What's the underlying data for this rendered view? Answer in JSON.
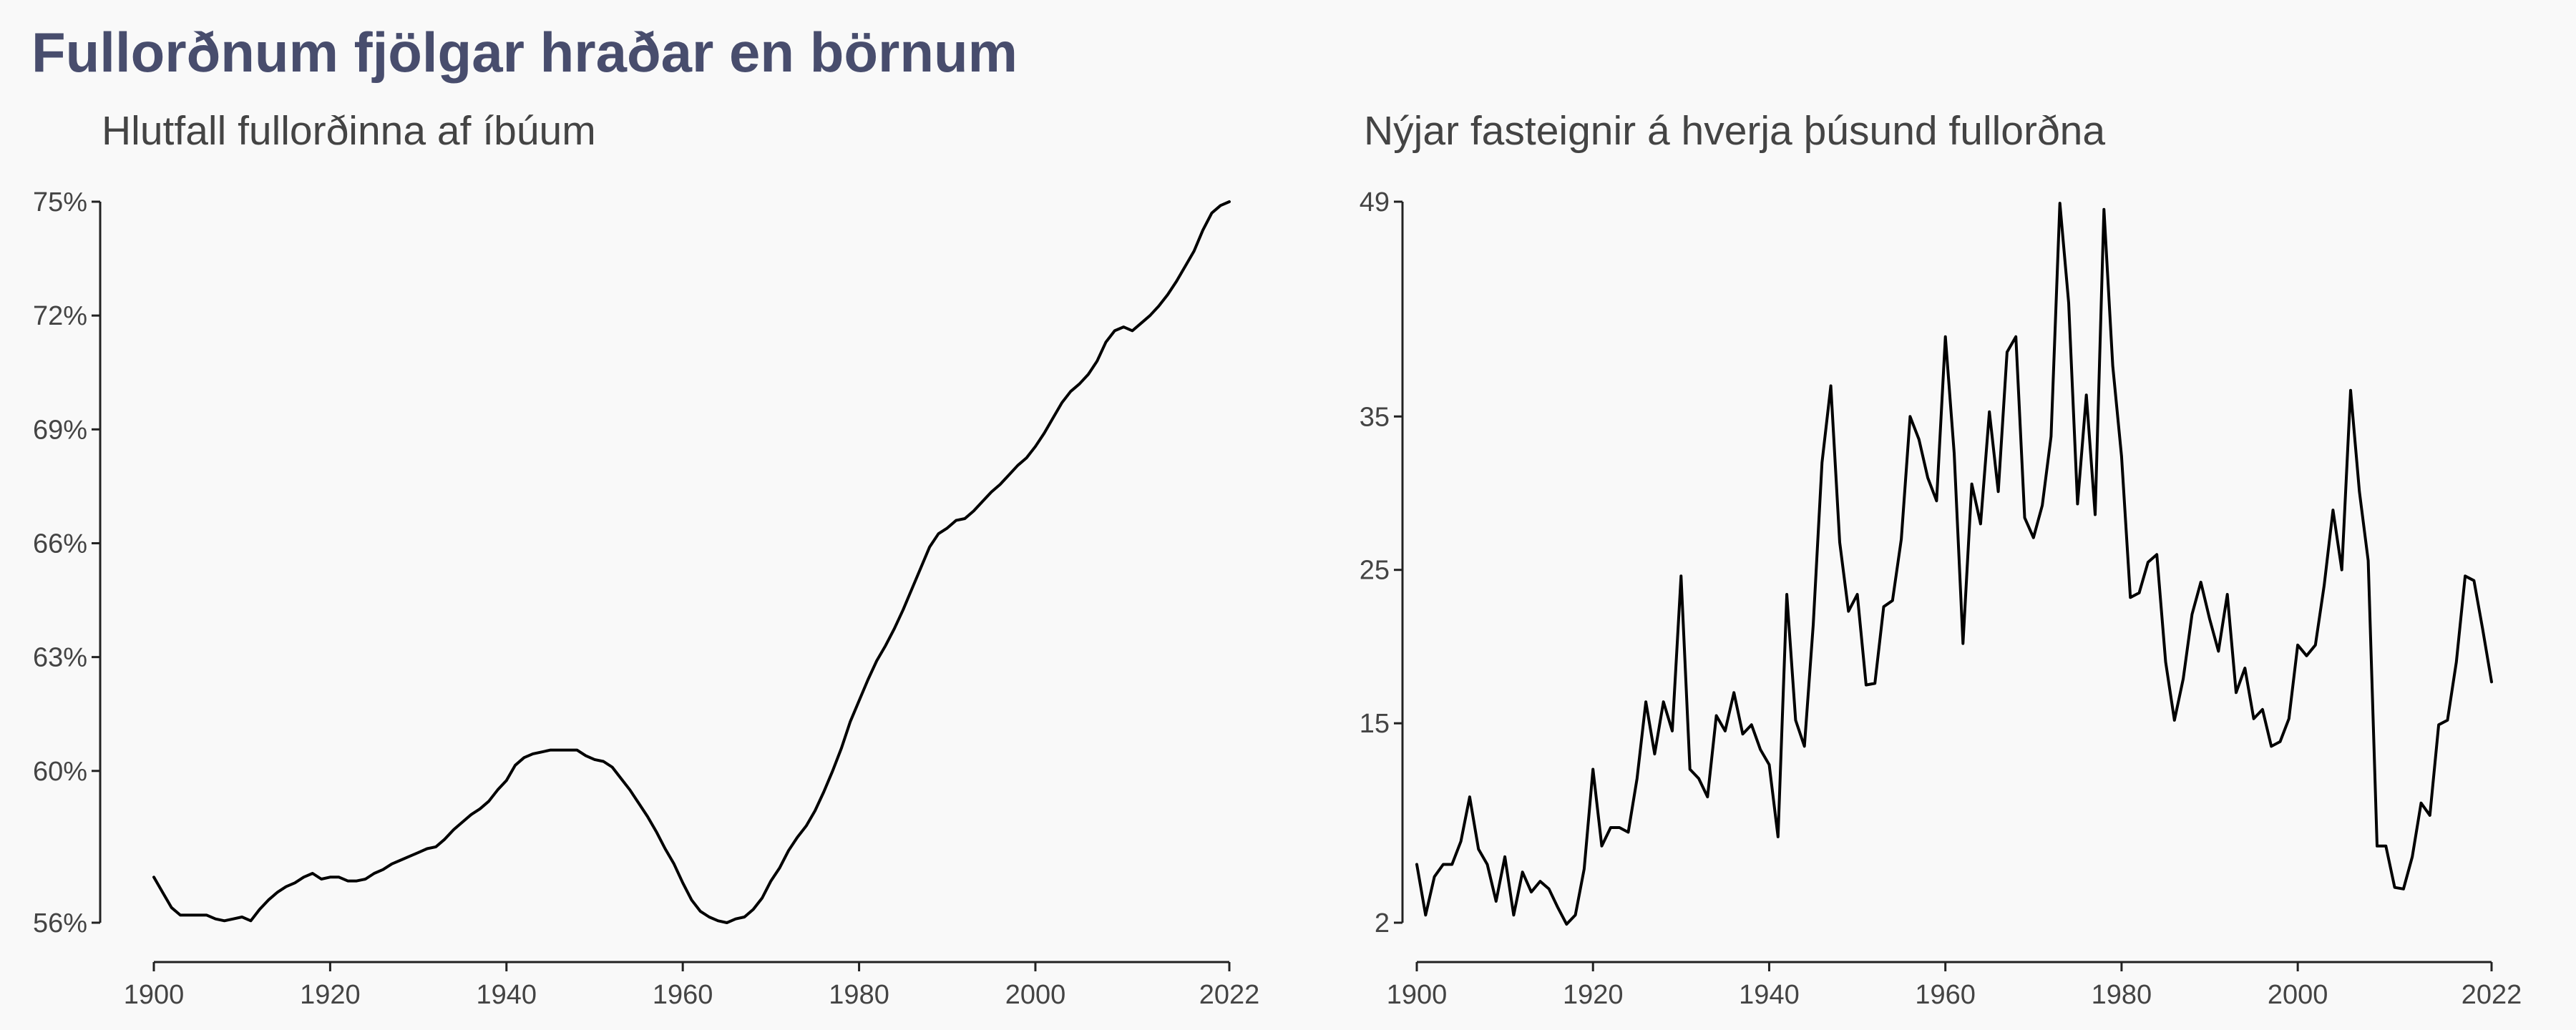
{
  "title": "Fullorðnum fjölgar hraðar en börnum",
  "chart_data": [
    {
      "type": "line",
      "title": "Hlutfall fullorðinna af íbúum",
      "xlabel": "",
      "ylabel": "",
      "xlim": [
        1900,
        2022
      ],
      "ylim": [
        56,
        75
      ],
      "x_ticks": [
        1900,
        1920,
        1940,
        1960,
        1980,
        2000,
        2022
      ],
      "y_ticks": [
        56,
        60,
        63,
        66,
        69,
        72,
        75
      ],
      "y_tick_labels": [
        "56%",
        "60%",
        "63%",
        "66%",
        "69%",
        "72%",
        "75%"
      ],
      "grid": false,
      "legend": "none",
      "line_color": "#000000",
      "series": [
        {
          "x": [
            1900,
            1901,
            1902,
            1903,
            1904,
            1905,
            1906,
            1907,
            1908,
            1909,
            1910,
            1911,
            1912,
            1913,
            1914,
            1915,
            1916,
            1917,
            1918,
            1919,
            1920,
            1921,
            1922,
            1923,
            1924,
            1925,
            1926,
            1927,
            1928,
            1929,
            1930,
            1931,
            1932,
            1933,
            1934,
            1935,
            1936,
            1937,
            1938,
            1939,
            1940,
            1941,
            1942,
            1943,
            1944,
            1945,
            1946,
            1947,
            1948,
            1949,
            1950,
            1951,
            1952,
            1953,
            1954,
            1955,
            1956,
            1957,
            1958,
            1959,
            1960,
            1961,
            1962,
            1963,
            1964,
            1965,
            1966,
            1967,
            1968,
            1969,
            1970,
            1971,
            1972,
            1973,
            1974,
            1975,
            1976,
            1977,
            1978,
            1979,
            1980,
            1981,
            1982,
            1983,
            1984,
            1985,
            1986,
            1987,
            1988,
            1989,
            1990,
            1991,
            1992,
            1993,
            1994,
            1995,
            1996,
            1997,
            1998,
            1999,
            2000,
            2001,
            2002,
            2003,
            2004,
            2005,
            2006,
            2007,
            2008,
            2009,
            2010,
            2011,
            2012,
            2013,
            2014,
            2015,
            2016,
            2017,
            2018,
            2019,
            2020,
            2021,
            2022
          ],
          "values": [
            57.2,
            56.8,
            56.4,
            56.2,
            56.2,
            56.2,
            56.2,
            56.1,
            56.05,
            56.1,
            56.15,
            56.05,
            56.35,
            56.6,
            56.8,
            56.95,
            57.05,
            57.2,
            57.3,
            57.15,
            57.2,
            57.2,
            57.1,
            57.1,
            57.15,
            57.3,
            57.4,
            57.55,
            57.65,
            57.75,
            57.85,
            57.95,
            58.0,
            58.2,
            58.45,
            58.65,
            58.85,
            59.0,
            59.2,
            59.5,
            59.75,
            60.15,
            60.35,
            60.45,
            60.5,
            60.55,
            60.55,
            60.55,
            60.55,
            60.4,
            60.3,
            60.25,
            60.1,
            59.8,
            59.5,
            59.15,
            58.8,
            58.4,
            57.95,
            57.55,
            57.05,
            56.6,
            56.3,
            56.15,
            56.05,
            56.0,
            56.1,
            56.15,
            56.35,
            56.65,
            57.1,
            57.45,
            57.9,
            58.25,
            58.55,
            58.95,
            59.45,
            60.0,
            60.6,
            61.3,
            61.85,
            62.4,
            62.9,
            63.3,
            63.75,
            64.25,
            64.8,
            65.35,
            65.9,
            66.25,
            66.4,
            66.6,
            66.65,
            66.85,
            67.1,
            67.35,
            67.55,
            67.8,
            68.05,
            68.25,
            68.55,
            68.9,
            69.3,
            69.7,
            70.0,
            70.2,
            70.45,
            70.8,
            71.3,
            71.6,
            71.7,
            71.6,
            71.8,
            72.0,
            72.25,
            72.55,
            72.9,
            73.3,
            73.7,
            74.25,
            74.7,
            74.9,
            75.0
          ]
        }
      ]
    },
    {
      "type": "line",
      "title": "Nýjar fasteignir á hverja þúsund fullorðna",
      "xlabel": "",
      "ylabel": "",
      "xlim": [
        1900,
        2022
      ],
      "ylim": [
        2,
        49
      ],
      "x_ticks": [
        1900,
        1920,
        1940,
        1960,
        1980,
        2000,
        2022
      ],
      "y_ticks": [
        2,
        15,
        25,
        35,
        49
      ],
      "y_tick_labels": [
        "2",
        "15",
        "25",
        "35",
        "49"
      ],
      "grid": false,
      "legend": "none",
      "line_color": "#000000",
      "series": [
        {
          "x": [
            1900,
            1901,
            1902,
            1903,
            1904,
            1905,
            1906,
            1907,
            1908,
            1909,
            1910,
            1911,
            1912,
            1913,
            1914,
            1915,
            1916,
            1917,
            1918,
            1919,
            1920,
            1921,
            1922,
            1923,
            1924,
            1925,
            1926,
            1927,
            1928,
            1929,
            1930,
            1931,
            1932,
            1933,
            1934,
            1935,
            1936,
            1937,
            1938,
            1939,
            1940,
            1941,
            1942,
            1943,
            1944,
            1945,
            1946,
            1947,
            1948,
            1949,
            1950,
            1951,
            1952,
            1953,
            1954,
            1955,
            1956,
            1957,
            1958,
            1959,
            1960,
            1961,
            1962,
            1963,
            1964,
            1965,
            1966,
            1967,
            1968,
            1969,
            1970,
            1971,
            1972,
            1973,
            1974,
            1975,
            1976,
            1977,
            1978,
            1979,
            1980,
            1981,
            1982,
            1983,
            1984,
            1985,
            1986,
            1987,
            1988,
            1989,
            1990,
            1991,
            1992,
            1993,
            1994,
            1995,
            1996,
            1997,
            1998,
            1999,
            2000,
            2001,
            2002,
            2003,
            2004,
            2005,
            2006,
            2007,
            2008,
            2009,
            2010,
            2011,
            2012,
            2013,
            2014,
            2015,
            2016,
            2017,
            2018,
            2019,
            2020,
            2021,
            2022
          ],
          "values": [
            5.8,
            2.5,
            5.0,
            5.8,
            5.8,
            7.3,
            10.2,
            6.8,
            5.8,
            3.4,
            6.3,
            2.5,
            5.3,
            4.0,
            4.7,
            4.2,
            3.0,
            1.9,
            2.5,
            5.5,
            12.0,
            7.0,
            8.2,
            8.2,
            7.9,
            11.4,
            16.4,
            13.0,
            16.4,
            14.5,
            24.6,
            12.0,
            11.4,
            10.2,
            15.5,
            14.5,
            17.0,
            14.3,
            14.9,
            13.3,
            12.3,
            7.6,
            23.4,
            15.2,
            13.5,
            21.4,
            32.0,
            37.0,
            26.8,
            22.3,
            23.4,
            17.5,
            17.6,
            22.6,
            23.0,
            27.0,
            35.0,
            33.5,
            31.0,
            29.5,
            40.2,
            32.6,
            20.2,
            30.6,
            28.0,
            35.3,
            30.1,
            39.2,
            40.2,
            28.4,
            27.1,
            29.2,
            33.7,
            48.9,
            42.4,
            29.3,
            36.4,
            28.6,
            48.5,
            38.3,
            32.4,
            23.2,
            23.5,
            25.5,
            26.0,
            19.0,
            15.2,
            17.9,
            22.1,
            24.2,
            21.8,
            19.7,
            23.4,
            17.0,
            18.6,
            15.3,
            15.9,
            13.5,
            13.8,
            15.3,
            20.1,
            19.4,
            20.1,
            24.0,
            28.9,
            25.0,
            36.7,
            30.1,
            25.6,
            7.0,
            7.0,
            4.3,
            4.2,
            6.3,
            9.8,
            9.0,
            14.9,
            15.2,
            19.0,
            24.6,
            24.3,
            21.1,
            17.7
          ]
        }
      ]
    }
  ]
}
